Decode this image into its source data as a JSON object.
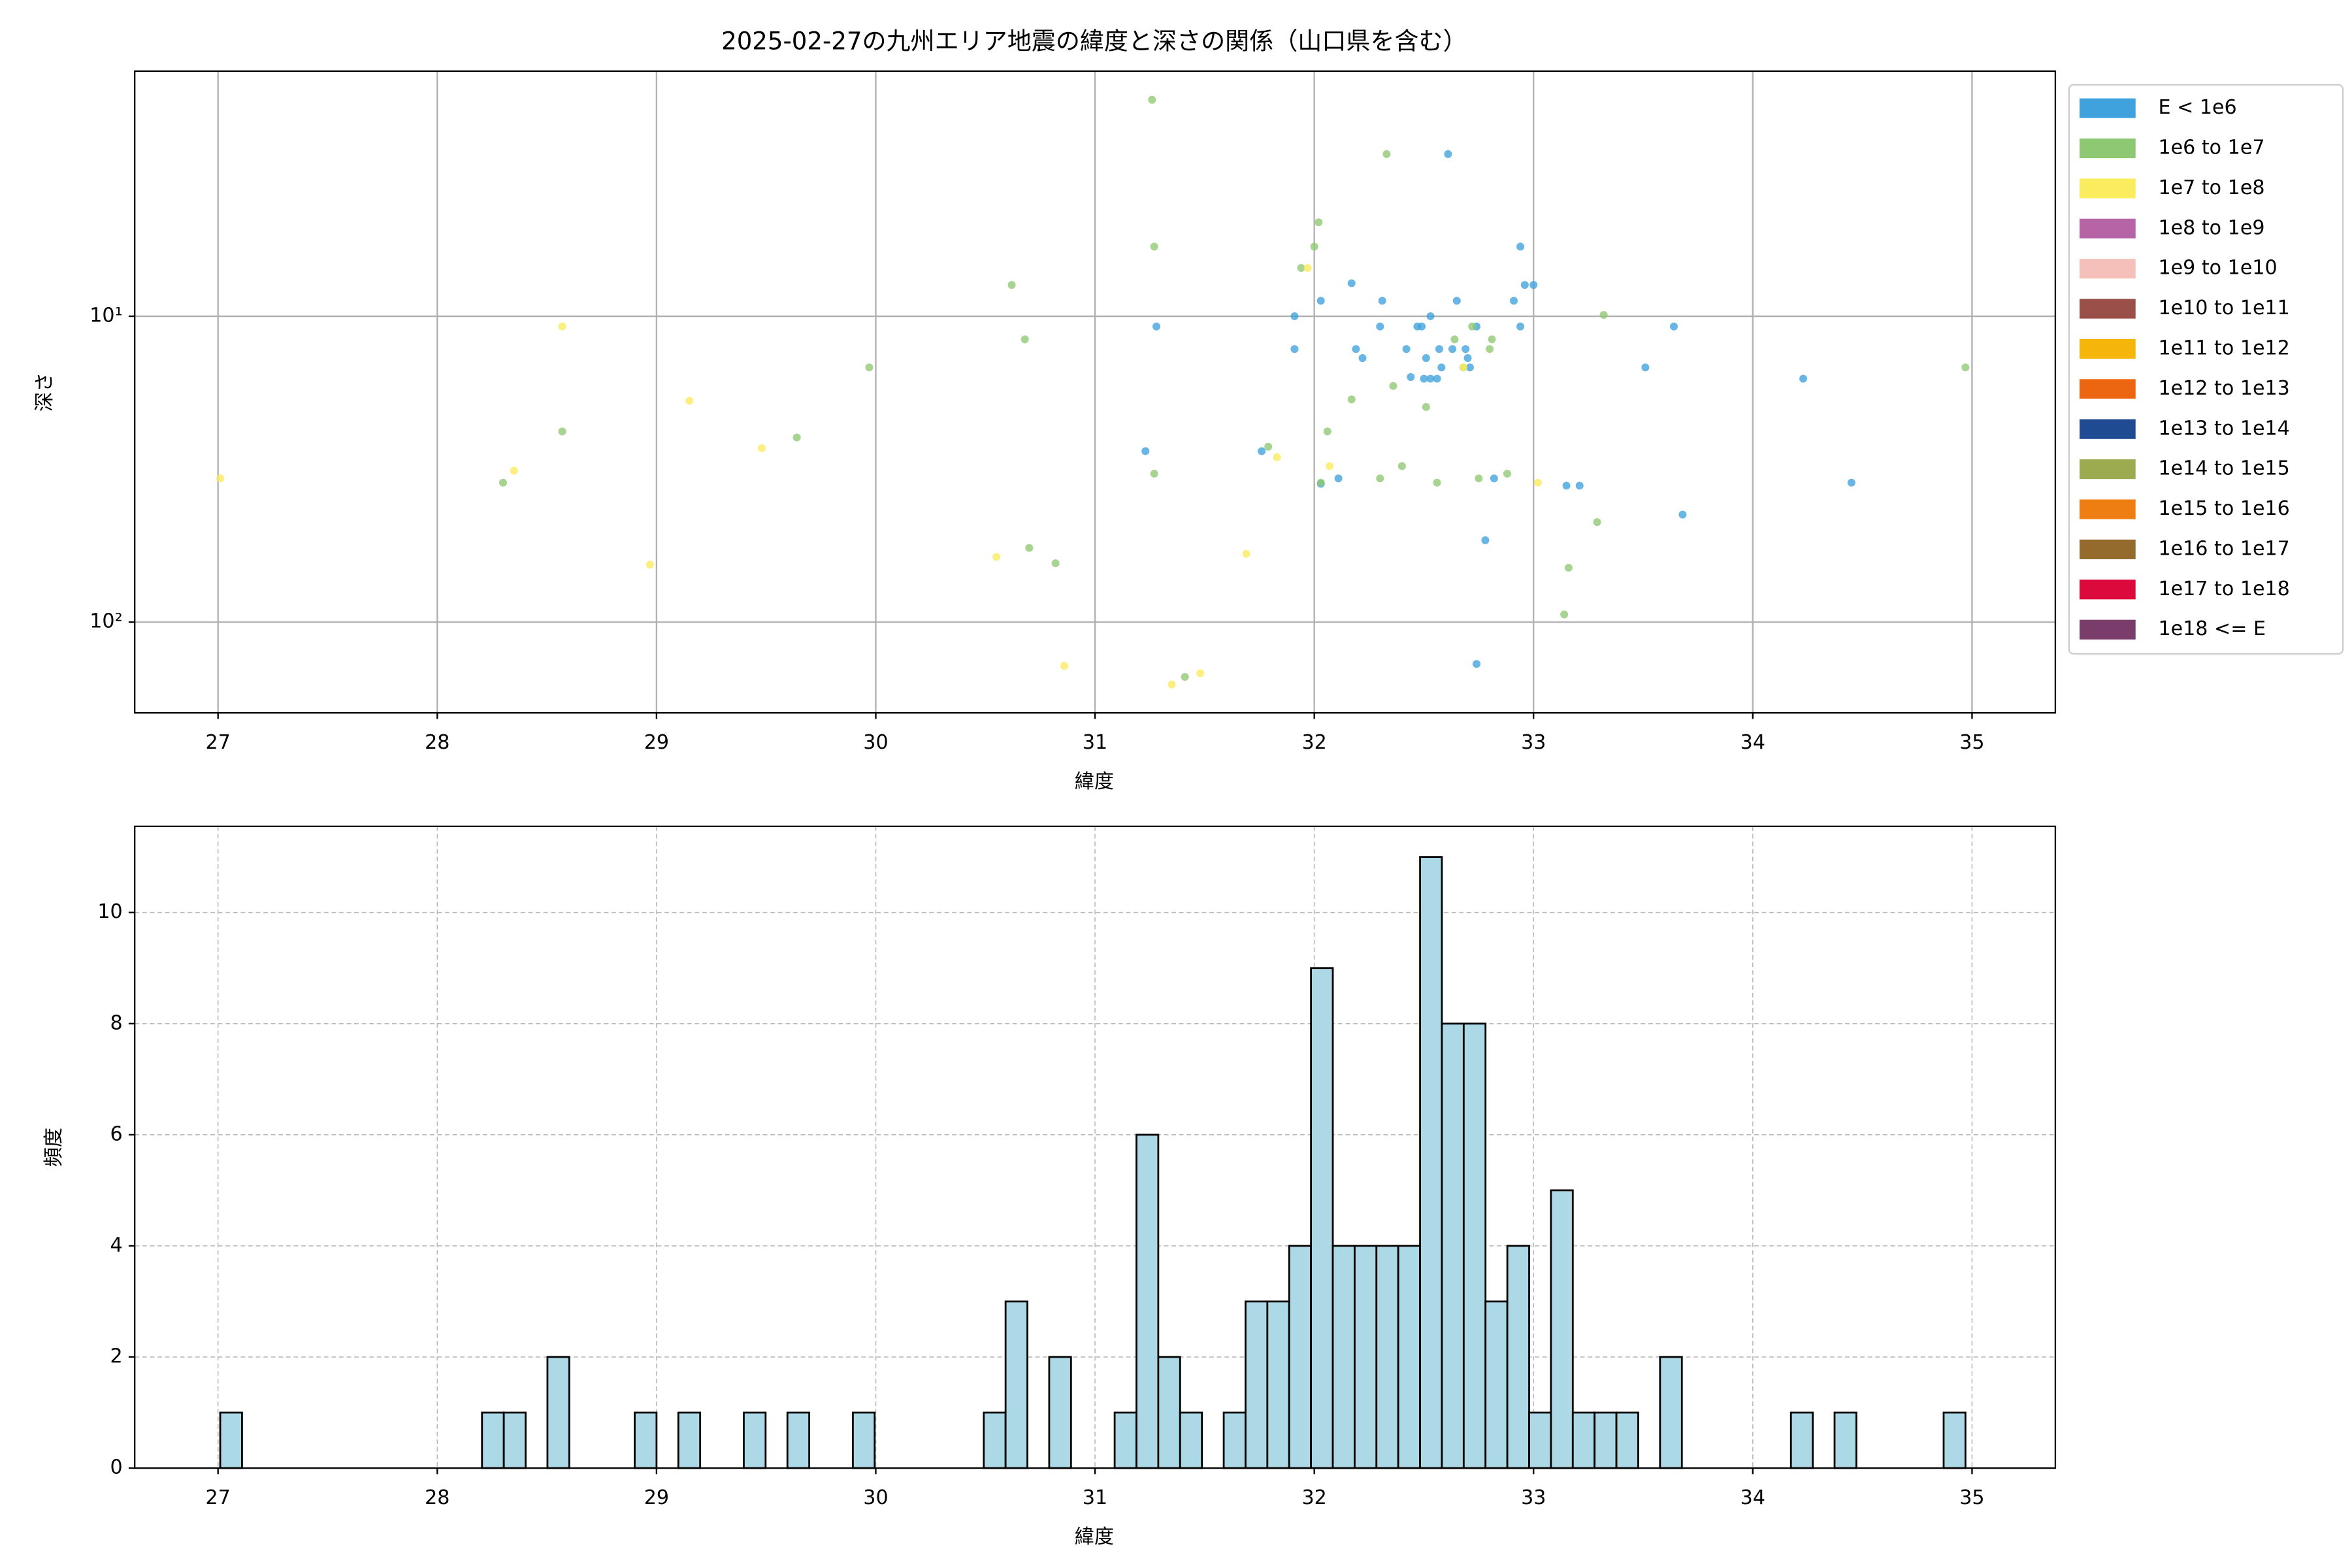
{
  "chart_data": [
    {
      "type": "scatter",
      "title": "2025-02-27の九州エリア地震の緯度と深さの関係（山口県を含む）",
      "xlabel": "緯度",
      "ylabel": "深さ",
      "xlim": [
        26.62,
        35.38
      ],
      "xticks": [
        27,
        28,
        29,
        30,
        31,
        32,
        33,
        34,
        35
      ],
      "yscale": "log",
      "invert_y": true,
      "ylim": [
        1.58,
        198
      ],
      "yticks": [
        {
          "value": 10,
          "label": "10¹"
        },
        {
          "value": 100,
          "label": "10²"
        }
      ],
      "grid": true,
      "grid_linestyle": "solid",
      "legend_loc": "outside upper right",
      "series": [
        {
          "name": "E < 1e6",
          "color": "#3fa2dd",
          "x": [
            32.61,
            32.94,
            32.96,
            33.0,
            32.17,
            32.03,
            32.31,
            32.65,
            32.91,
            32.53,
            31.91,
            31.28,
            32.3,
            32.47,
            32.49,
            32.74,
            32.94,
            33.64,
            31.91,
            32.19,
            32.42,
            32.57,
            32.63,
            32.69,
            32.22,
            32.51,
            32.7,
            32.44,
            32.5,
            32.53,
            32.58,
            32.56,
            32.71,
            33.51,
            34.23,
            31.23,
            31.76,
            32.11,
            32.03,
            32.82,
            33.15,
            33.21,
            34.45,
            33.68,
            32.78,
            32.74
          ],
          "values": [
            2.95,
            5.92,
            7.9,
            7.9,
            7.8,
            8.9,
            8.9,
            8.9,
            8.9,
            10,
            10,
            10.8,
            10.8,
            10.8,
            10.8,
            10.8,
            10.8,
            10.8,
            12.8,
            12.8,
            12.8,
            12.8,
            12.8,
            12.8,
            13.7,
            13.7,
            13.7,
            15.8,
            16,
            16,
            14.7,
            16,
            14.7,
            14.7,
            16,
            27.6,
            27.6,
            33.9,
            35.3,
            33.9,
            35.8,
            35.8,
            35,
            44.5,
            54,
            137
          ]
        },
        {
          "name": "1e6 to 1e7",
          "color": "#8fc872",
          "x": [
            31.26,
            32.33,
            32.02,
            32.0,
            31.27,
            30.62,
            31.94,
            33.32,
            32.72,
            30.68,
            32.64,
            32.81,
            32.8,
            29.97,
            34.97,
            32.68,
            32.36,
            32.17,
            32.51,
            28.57,
            32.06,
            29.64,
            31.79,
            32.4,
            31.27,
            32.3,
            32.56,
            32.75,
            32.88,
            28.3,
            32.03,
            33.29,
            30.7,
            30.82,
            33.16,
            33.14,
            31.41
          ],
          "values": [
            1.96,
            2.95,
            4.93,
            5.92,
            5.92,
            7.9,
            6.95,
            9.9,
            10.8,
            11.9,
            11.9,
            11.9,
            12.8,
            14.7,
            14.7,
            14.7,
            16.9,
            18.7,
            19.8,
            23.8,
            23.8,
            24.9,
            26.7,
            30.9,
            32.7,
            33.9,
            35,
            33.9,
            32.7,
            35,
            35,
            47.1,
            57.2,
            64.2,
            66.4,
            94.4,
            151
          ]
        },
        {
          "name": "1e7 to 1e8",
          "color": "#fbeb5f",
          "x": [
            27.01,
            28.35,
            28.57,
            29.15,
            29.48,
            28.97,
            30.55,
            30.86,
            31.35,
            31.48,
            31.69,
            31.83,
            32.07,
            31.97,
            32.68,
            33.02
          ],
          "values": [
            33.9,
            32.0,
            10.8,
            18.9,
            27.0,
            64.9,
            61.2,
            139,
            160,
            147,
            59.8,
            28.9,
            30.9,
            6.95,
            14.7,
            35.0
          ]
        },
        {
          "name": "1e8 to 1e9",
          "color": "#b764a7",
          "x": [],
          "values": []
        },
        {
          "name": "1e9 to 1e10",
          "color": "#f4c0b9",
          "x": [],
          "values": []
        },
        {
          "name": "1e10 to 1e11",
          "color": "#9a5049",
          "x": [],
          "values": []
        },
        {
          "name": "1e11 to 1e12",
          "color": "#f6b50a",
          "x": [],
          "values": []
        },
        {
          "name": "1e12 to 1e13",
          "color": "#ec6510",
          "x": [],
          "values": []
        },
        {
          "name": "1e13 to 1e14",
          "color": "#1f4b93",
          "x": [],
          "values": []
        },
        {
          "name": "1e14 to 1e15",
          "color": "#9cab4f",
          "x": [],
          "values": []
        },
        {
          "name": "1e15 to 1e16",
          "color": "#ee7d12",
          "x": [],
          "values": []
        },
        {
          "name": "1e16 to 1e17",
          "color": "#956a2d",
          "x": [],
          "values": []
        },
        {
          "name": "1e17 to 1e18",
          "color": "#dc0a3c",
          "x": [],
          "values": []
        },
        {
          "name": "1e18 <= E",
          "color": "#7a3d6b",
          "x": [],
          "values": []
        }
      ]
    },
    {
      "type": "histogram",
      "xlabel": "緯度",
      "ylabel": "頻度",
      "xlim": [
        26.62,
        35.38
      ],
      "xticks": [
        27,
        28,
        29,
        30,
        31,
        32,
        33,
        34,
        35
      ],
      "ylim": [
        0,
        11.55
      ],
      "yticks": [
        0,
        2,
        4,
        6,
        8,
        10
      ],
      "grid": true,
      "grid_linestyle": "dashed",
      "color": "#add8e6",
      "edgecolor": "#000000",
      "bins": [
        27.01,
        27.1095,
        27.209,
        27.3085,
        27.408,
        27.5075,
        27.607,
        27.7065,
        27.806,
        27.9055,
        28.005,
        28.1045,
        28.204,
        28.3035,
        28.403,
        28.5025,
        28.602,
        28.7015,
        28.801,
        28.9005,
        29.0,
        29.0995,
        29.199,
        29.2985,
        29.398,
        29.4975,
        29.597,
        29.6965,
        29.796,
        29.8955,
        29.995,
        30.0945,
        30.194,
        30.2935,
        30.393,
        30.4925,
        30.592,
        30.6915,
        30.791,
        30.8905,
        30.99,
        31.0895,
        31.189,
        31.2885,
        31.388,
        31.4875,
        31.587,
        31.6865,
        31.786,
        31.8855,
        31.985,
        32.0845,
        32.184,
        32.2835,
        32.383,
        32.4825,
        32.582,
        32.6815,
        32.781,
        32.8805,
        32.98,
        33.0795,
        33.179,
        33.2785,
        33.378,
        33.4775,
        33.577,
        33.6765,
        33.776,
        33.8755,
        33.975,
        34.0745,
        34.174,
        34.2735,
        34.373,
        34.4725,
        34.572,
        34.6715,
        34.771,
        34.8705,
        34.97
      ],
      "counts": [
        1,
        0,
        0,
        0,
        0,
        0,
        0,
        0,
        0,
        0,
        0,
        0,
        1,
        1,
        0,
        2,
        0,
        0,
        0,
        1,
        0,
        1,
        0,
        0,
        1,
        0,
        1,
        0,
        0,
        1,
        0,
        0,
        0,
        0,
        0,
        1,
        3,
        0,
        2,
        0,
        0,
        1,
        6,
        2,
        1,
        0,
        1,
        3,
        3,
        4,
        9,
        4,
        4,
        4,
        4,
        11,
        8,
        8,
        3,
        4,
        1,
        5,
        1,
        1,
        1,
        0,
        2,
        0,
        0,
        0,
        0,
        0,
        1,
        0,
        1,
        0,
        0,
        0,
        0,
        1
      ]
    }
  ]
}
